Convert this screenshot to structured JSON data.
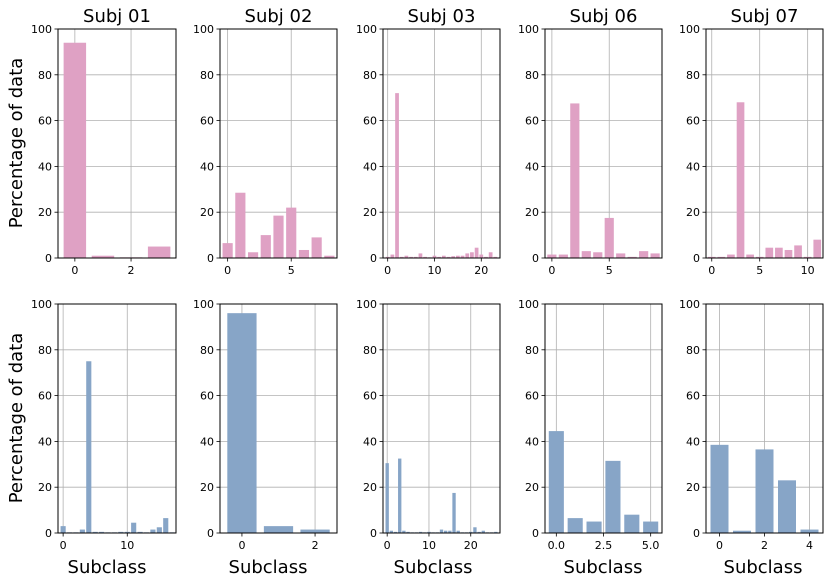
{
  "figure": {
    "ylabel": "Percentage of data",
    "xlabel": "Subclass",
    "colors": {
      "row_top": "#dfa1c4",
      "row_bottom": "#87a5c7",
      "grid": "#b0b0b0",
      "axes": "#000000"
    }
  },
  "chart_data": [
    {
      "type": "bar",
      "row": 0,
      "col": 0,
      "title": "Subj 01",
      "color": "#dfa1c4",
      "xlim": [
        -0.6,
        3.6
      ],
      "ylim": [
        0,
        100
      ],
      "xticks": [
        0,
        2
      ],
      "yticks": [
        0,
        20,
        40,
        60,
        80,
        100
      ],
      "x": [
        0,
        1,
        2,
        3
      ],
      "values": [
        94,
        1,
        0.3,
        5
      ]
    },
    {
      "type": "bar",
      "row": 0,
      "col": 1,
      "title": "Subj 02",
      "color": "#dfa1c4",
      "xlim": [
        -0.6,
        8.6
      ],
      "ylim": [
        0,
        100
      ],
      "xticks": [
        0,
        5
      ],
      "yticks": [
        0,
        20,
        40,
        60,
        80,
        100
      ],
      "x": [
        0,
        1,
        2,
        3,
        4,
        5,
        6,
        7,
        8
      ],
      "values": [
        6.5,
        28.5,
        2.5,
        10,
        18.5,
        22,
        3.5,
        9,
        1
      ]
    },
    {
      "type": "bar",
      "row": 0,
      "col": 2,
      "title": "Subj 03",
      "color": "#dfa1c4",
      "xlim": [
        -1,
        24
      ],
      "ylim": [
        0,
        100
      ],
      "xticks": [
        0,
        10,
        20
      ],
      "yticks": [
        0,
        20,
        40,
        60,
        80,
        100
      ],
      "x": [
        0,
        1,
        2,
        3,
        4,
        5,
        6,
        7,
        8,
        9,
        10,
        11,
        12,
        13,
        14,
        15,
        16,
        17,
        18,
        19,
        20,
        21,
        22,
        23
      ],
      "values": [
        0.5,
        1.5,
        72,
        0.5,
        1,
        0.5,
        0.5,
        2,
        0.5,
        0.3,
        1,
        0.5,
        1,
        0.5,
        0.8,
        1,
        1,
        2,
        2.5,
        4.5,
        1.5,
        0.5,
        2.5,
        0.5
      ]
    },
    {
      "type": "bar",
      "row": 0,
      "col": 3,
      "title": "Subj 06",
      "color": "#dfa1c4",
      "xlim": [
        -0.6,
        9.6
      ],
      "ylim": [
        0,
        100
      ],
      "xticks": [
        0,
        5
      ],
      "yticks": [
        0,
        20,
        40,
        60,
        80,
        100
      ],
      "x": [
        0,
        1,
        2,
        3,
        4,
        5,
        6,
        7,
        8,
        9
      ],
      "values": [
        1.5,
        1.5,
        67.5,
        3,
        2.5,
        17.5,
        2,
        0.5,
        3,
        2
      ]
    },
    {
      "type": "bar",
      "row": 0,
      "col": 4,
      "title": "Subj 07",
      "color": "#dfa1c4",
      "xlim": [
        -0.6,
        11.6
      ],
      "ylim": [
        0,
        100
      ],
      "xticks": [
        0,
        5,
        10
      ],
      "yticks": [
        0,
        20,
        40,
        60,
        80,
        100
      ],
      "x": [
        0,
        1,
        2,
        3,
        4,
        5,
        6,
        7,
        8,
        9,
        10,
        11
      ],
      "values": [
        0.5,
        0.5,
        1.5,
        68,
        1.5,
        0.5,
        4.5,
        4.5,
        3.5,
        5.5,
        0.5,
        8
      ]
    },
    {
      "type": "bar",
      "row": 1,
      "col": 0,
      "title": "",
      "color": "#87a5c7",
      "xlim": [
        -0.8,
        17.6
      ],
      "ylim": [
        0,
        100
      ],
      "xticks": [
        0,
        10
      ],
      "yticks": [
        0,
        20,
        40,
        60,
        80,
        100
      ],
      "x": [
        0,
        1,
        2,
        3,
        4,
        5,
        6,
        7,
        8,
        9,
        10,
        11,
        12,
        13,
        14,
        15,
        16,
        17
      ],
      "values": [
        3,
        0.3,
        0.3,
        1.5,
        75,
        0.5,
        0.5,
        0.3,
        0.3,
        0.5,
        0.5,
        4.5,
        0.5,
        0.3,
        1.5,
        2.5,
        6.5,
        0.3
      ]
    },
    {
      "type": "bar",
      "row": 1,
      "col": 1,
      "title": "",
      "color": "#87a5c7",
      "xlim": [
        -0.6,
        2.6
      ],
      "ylim": [
        0,
        100
      ],
      "xticks": [
        0,
        2
      ],
      "yticks": [
        0,
        20,
        40,
        60,
        80,
        100
      ],
      "x": [
        0,
        1,
        2
      ],
      "values": [
        96,
        3,
        1.5
      ]
    },
    {
      "type": "bar",
      "row": 1,
      "col": 2,
      "title": "",
      "color": "#87a5c7",
      "xlim": [
        -1,
        27
      ],
      "ylim": [
        0,
        100
      ],
      "xticks": [
        0,
        10,
        20
      ],
      "yticks": [
        0,
        20,
        40,
        60,
        80,
        100
      ],
      "x": [
        0,
        1,
        2,
        3,
        4,
        5,
        6,
        7,
        8,
        9,
        10,
        11,
        12,
        13,
        14,
        15,
        16,
        17,
        18,
        19,
        20,
        21,
        22,
        23,
        24,
        25,
        26
      ],
      "values": [
        30.5,
        1,
        0.5,
        32.5,
        1,
        0.5,
        0.3,
        0.3,
        0.5,
        0.3,
        0.5,
        0.3,
        0.3,
        1.5,
        1,
        1,
        17.5,
        1,
        0.3,
        0.3,
        0.5,
        2.5,
        0.5,
        1,
        0.3,
        0.3,
        0.5
      ]
    },
    {
      "type": "bar",
      "row": 1,
      "col": 3,
      "title": "",
      "color": "#87a5c7",
      "xlim": [
        -0.6,
        5.6
      ],
      "ylim": [
        0,
        100
      ],
      "xticks": [
        0.0,
        2.5,
        5.0
      ],
      "xtick_labels": [
        "0.0",
        "2.5",
        "5.0"
      ],
      "yticks": [
        0,
        20,
        40,
        60,
        80,
        100
      ],
      "x": [
        0,
        1,
        2,
        3,
        4,
        5
      ],
      "values": [
        44.5,
        6.5,
        5,
        31.5,
        8,
        5
      ]
    },
    {
      "type": "bar",
      "row": 1,
      "col": 4,
      "title": "",
      "color": "#87a5c7",
      "xlim": [
        -0.6,
        4.6
      ],
      "ylim": [
        0,
        100
      ],
      "xticks": [
        0,
        2,
        4
      ],
      "yticks": [
        0,
        20,
        40,
        60,
        80,
        100
      ],
      "x": [
        0,
        1,
        2,
        3,
        4
      ],
      "values": [
        38.5,
        1,
        36.5,
        23,
        1.5
      ]
    }
  ]
}
